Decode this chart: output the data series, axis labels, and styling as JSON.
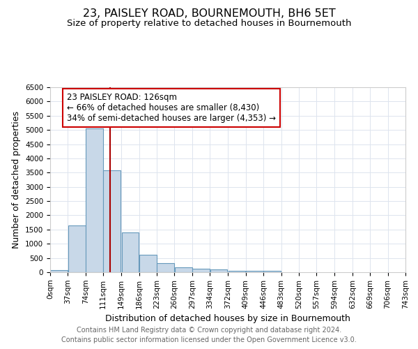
{
  "title": "23, PAISLEY ROAD, BOURNEMOUTH, BH6 5ET",
  "subtitle": "Size of property relative to detached houses in Bournemouth",
  "xlabel": "Distribution of detached houses by size in Bournemouth",
  "ylabel": "Number of detached properties",
  "footnote1": "Contains HM Land Registry data © Crown copyright and database right 2024.",
  "footnote2": "Contains public sector information licensed under the Open Government Licence v3.0.",
  "bin_labels": [
    "0sqm",
    "37sqm",
    "74sqm",
    "111sqm",
    "149sqm",
    "186sqm",
    "223sqm",
    "260sqm",
    "297sqm",
    "334sqm",
    "372sqm",
    "409sqm",
    "446sqm",
    "483sqm",
    "520sqm",
    "557sqm",
    "594sqm",
    "632sqm",
    "669sqm",
    "706sqm",
    "743sqm"
  ],
  "bin_edges": [
    0,
    37,
    74,
    111,
    149,
    186,
    223,
    260,
    297,
    334,
    372,
    409,
    446,
    483,
    520,
    557,
    594,
    632,
    669,
    706,
    743
  ],
  "bar_heights": [
    75,
    1650,
    5050,
    3580,
    1400,
    620,
    310,
    165,
    115,
    90,
    45,
    40,
    60,
    0,
    0,
    0,
    0,
    0,
    0,
    0
  ],
  "bar_color": "#c8d8e8",
  "bar_edge_color": "#6699bb",
  "red_line_x": 126,
  "ylim": [
    0,
    6500
  ],
  "annotation_text": "23 PAISLEY ROAD: 126sqm\n← 66% of detached houses are smaller (8,430)\n34% of semi-detached houses are larger (4,353) →",
  "annotation_box_color": "white",
  "annotation_box_edge_color": "#cc0000",
  "red_line_color": "#aa0000",
  "title_fontsize": 11.5,
  "subtitle_fontsize": 9.5,
  "axis_label_fontsize": 9,
  "tick_fontsize": 7.5,
  "footnote_fontsize": 7,
  "annotation_fontsize": 8.5,
  "grid_color": "#dde4ee"
}
